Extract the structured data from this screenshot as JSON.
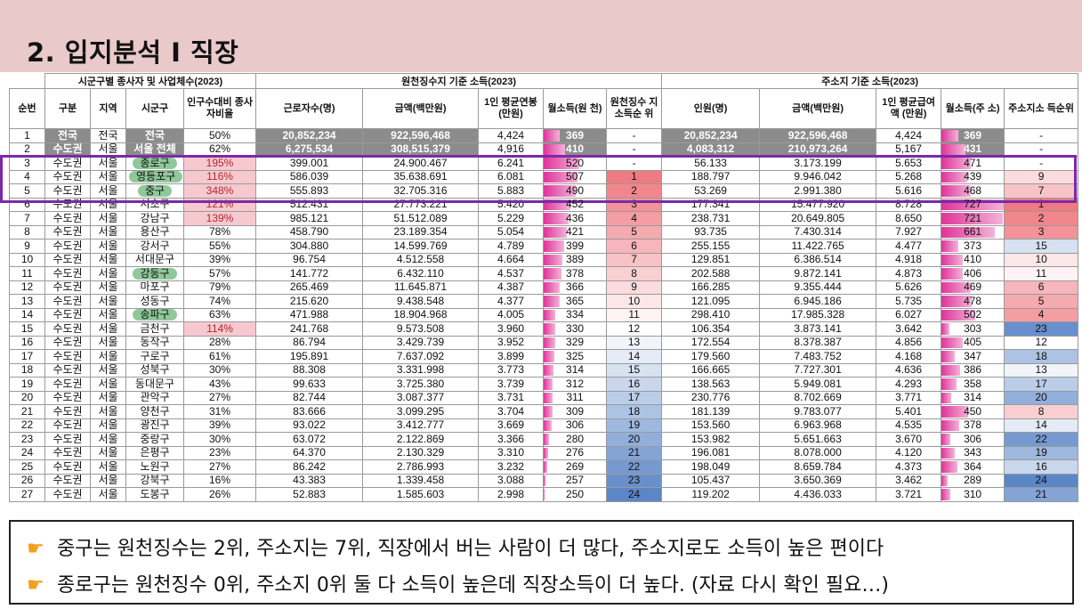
{
  "header": {
    "title": "2. 입지분석 I 직장"
  },
  "table": {
    "group_headers": {
      "left": "시군구별 종사자 및 사업체수(2023)",
      "middle": "원천징수지 기준 소득(2023)",
      "right": "주소지 기준 소득(2023)"
    },
    "columns": {
      "no": "순번",
      "gubun": "구분",
      "region": "지역",
      "sigungu": "시군구",
      "ratio": "인구수대비 종사자비율",
      "workers": "근로자수(명)",
      "amount": "금액(백만원)",
      "avg": "1인 평균연봉 (만원)",
      "monthly": "월소득(원 천)",
      "rank": "원천징수 지소득순 위",
      "people": "인원(명)",
      "amount2": "금액(백만원)",
      "avg2": "1인 평균급여액 (만원)",
      "monthly2": "월소득(주 소)",
      "rank2": "주소지소 득순위"
    },
    "rows": [
      {
        "no": "1",
        "gubun": "전국",
        "region": "전국",
        "sigungu": "전국",
        "ratio": "50%",
        "workers": "20,852,234",
        "amount": "922,596,468",
        "avg": "4,424",
        "monthly": "369",
        "rank": "-",
        "people": "20,852,234",
        "amount2": "922,596,468",
        "avg2": "4,424",
        "monthly2": "369",
        "rank2": "-"
      },
      {
        "no": "2",
        "gubun": "수도권",
        "region": "서울",
        "sigungu": "서울 전체",
        "ratio": "62%",
        "workers": "6,275,534",
        "amount": "308,515,379",
        "avg": "4,916",
        "monthly": "410",
        "rank": "-",
        "people": "4,083,312",
        "amount2": "210,973,264",
        "avg2": "5,167",
        "monthly2": "431",
        "rank2": "-"
      },
      {
        "no": "3",
        "gubun": "수도권",
        "region": "서울",
        "sigungu": "종로구",
        "ratio": "195%",
        "workers": "399.001",
        "amount": "24.900.467",
        "avg": "6.241",
        "monthly": "520",
        "rank": "-",
        "people": "56.133",
        "amount2": "3.173.199",
        "avg2": "5.653",
        "monthly2": "471",
        "rank2": "-"
      },
      {
        "no": "4",
        "gubun": "수도권",
        "region": "서울",
        "sigungu": "영등포구",
        "ratio": "116%",
        "workers": "586.039",
        "amount": "35.638.691",
        "avg": "6.081",
        "monthly": "507",
        "rank": "1",
        "people": "188.797",
        "amount2": "9.946.042",
        "avg2": "5.268",
        "monthly2": "439",
        "rank2": "9"
      },
      {
        "no": "5",
        "gubun": "수도권",
        "region": "서울",
        "sigungu": "중구",
        "ratio": "348%",
        "workers": "555.893",
        "amount": "32.705.316",
        "avg": "5.883",
        "monthly": "490",
        "rank": "2",
        "people": "53.269",
        "amount2": "2.991.380",
        "avg2": "5.616",
        "monthly2": "468",
        "rank2": "7"
      },
      {
        "no": "6",
        "gubun": "수도권",
        "region": "서울",
        "sigungu": "서초구",
        "ratio": "121%",
        "workers": "512.431",
        "amount": "27.773.221",
        "avg": "5.420",
        "monthly": "452",
        "rank": "3",
        "people": "177.341",
        "amount2": "15.477.920",
        "avg2": "8.728",
        "monthly2": "727",
        "rank2": "1"
      },
      {
        "no": "7",
        "gubun": "수도권",
        "region": "서울",
        "sigungu": "강남구",
        "ratio": "139%",
        "workers": "985.121",
        "amount": "51.512.089",
        "avg": "5.229",
        "monthly": "436",
        "rank": "4",
        "people": "238.731",
        "amount2": "20.649.805",
        "avg2": "8.650",
        "monthly2": "721",
        "rank2": "2"
      },
      {
        "no": "8",
        "gubun": "수도권",
        "region": "서울",
        "sigungu": "용산구",
        "ratio": "78%",
        "workers": "458.790",
        "amount": "23.189.354",
        "avg": "5.054",
        "monthly": "421",
        "rank": "5",
        "people": "93.735",
        "amount2": "7.430.314",
        "avg2": "7.927",
        "monthly2": "661",
        "rank2": "3"
      },
      {
        "no": "9",
        "gubun": "수도권",
        "region": "서울",
        "sigungu": "강서구",
        "ratio": "55%",
        "workers": "304.880",
        "amount": "14.599.769",
        "avg": "4.789",
        "monthly": "399",
        "rank": "6",
        "people": "255.155",
        "amount2": "11.422.765",
        "avg2": "4.477",
        "monthly2": "373",
        "rank2": "15"
      },
      {
        "no": "10",
        "gubun": "수도권",
        "region": "서울",
        "sigungu": "서대문구",
        "ratio": "39%",
        "workers": "96.754",
        "amount": "4.512.558",
        "avg": "4.664",
        "monthly": "389",
        "rank": "7",
        "people": "129.851",
        "amount2": "6.386.514",
        "avg2": "4.918",
        "monthly2": "410",
        "rank2": "10"
      },
      {
        "no": "11",
        "gubun": "수도권",
        "region": "서울",
        "sigungu": "강동구",
        "ratio": "57%",
        "workers": "141.772",
        "amount": "6.432.110",
        "avg": "4.537",
        "monthly": "378",
        "rank": "8",
        "people": "202.588",
        "amount2": "9.872.141",
        "avg2": "4.873",
        "monthly2": "406",
        "rank2": "11"
      },
      {
        "no": "12",
        "gubun": "수도권",
        "region": "서울",
        "sigungu": "마포구",
        "ratio": "79%",
        "workers": "265.469",
        "amount": "11.645.871",
        "avg": "4.387",
        "monthly": "366",
        "rank": "9",
        "people": "166.285",
        "amount2": "9.355.444",
        "avg2": "5.626",
        "monthly2": "469",
        "rank2": "6"
      },
      {
        "no": "13",
        "gubun": "수도권",
        "region": "서울",
        "sigungu": "성동구",
        "ratio": "74%",
        "workers": "215.620",
        "amount": "9.438.548",
        "avg": "4.377",
        "monthly": "365",
        "rank": "10",
        "people": "121.095",
        "amount2": "6.945.186",
        "avg2": "5.735",
        "monthly2": "478",
        "rank2": "5"
      },
      {
        "no": "14",
        "gubun": "수도권",
        "region": "서울",
        "sigungu": "송파구",
        "ratio": "63%",
        "workers": "471.988",
        "amount": "18.904.968",
        "avg": "4.005",
        "monthly": "334",
        "rank": "11",
        "people": "298.410",
        "amount2": "17.985.328",
        "avg2": "6.027",
        "monthly2": "502",
        "rank2": "4"
      },
      {
        "no": "15",
        "gubun": "수도권",
        "region": "서울",
        "sigungu": "금천구",
        "ratio": "114%",
        "workers": "241.768",
        "amount": "9.573.508",
        "avg": "3.960",
        "monthly": "330",
        "rank": "12",
        "people": "106.354",
        "amount2": "3.873.141",
        "avg2": "3.642",
        "monthly2": "303",
        "rank2": "23"
      },
      {
        "no": "16",
        "gubun": "수도권",
        "region": "서울",
        "sigungu": "동작구",
        "ratio": "28%",
        "workers": "86.794",
        "amount": "3.429.739",
        "avg": "3.952",
        "monthly": "329",
        "rank": "13",
        "people": "172.554",
        "amount2": "8.378.387",
        "avg2": "4.856",
        "monthly2": "405",
        "rank2": "12"
      },
      {
        "no": "17",
        "gubun": "수도권",
        "region": "서울",
        "sigungu": "구로구",
        "ratio": "61%",
        "workers": "195.891",
        "amount": "7.637.092",
        "avg": "3.899",
        "monthly": "325",
        "rank": "14",
        "people": "179.560",
        "amount2": "7.483.752",
        "avg2": "4.168",
        "monthly2": "347",
        "rank2": "18"
      },
      {
        "no": "18",
        "gubun": "수도권",
        "region": "서울",
        "sigungu": "성북구",
        "ratio": "30%",
        "workers": "88.308",
        "amount": "3.331.998",
        "avg": "3.773",
        "monthly": "314",
        "rank": "15",
        "people": "166.665",
        "amount2": "7.727.301",
        "avg2": "4.636",
        "monthly2": "386",
        "rank2": "13"
      },
      {
        "no": "19",
        "gubun": "수도권",
        "region": "서울",
        "sigungu": "동대문구",
        "ratio": "43%",
        "workers": "99.633",
        "amount": "3.725.380",
        "avg": "3.739",
        "monthly": "312",
        "rank": "16",
        "people": "138.563",
        "amount2": "5.949.081",
        "avg2": "4.293",
        "monthly2": "358",
        "rank2": "17"
      },
      {
        "no": "20",
        "gubun": "수도권",
        "region": "서울",
        "sigungu": "관악구",
        "ratio": "27%",
        "workers": "82.744",
        "amount": "3.087.377",
        "avg": "3.731",
        "monthly": "311",
        "rank": "17",
        "people": "230.776",
        "amount2": "8.702.669",
        "avg2": "3.771",
        "monthly2": "314",
        "rank2": "20"
      },
      {
        "no": "21",
        "gubun": "수도권",
        "region": "서울",
        "sigungu": "양천구",
        "ratio": "31%",
        "workers": "83.666",
        "amount": "3.099.295",
        "avg": "3.704",
        "monthly": "309",
        "rank": "18",
        "people": "181.139",
        "amount2": "9.783.077",
        "avg2": "5.401",
        "monthly2": "450",
        "rank2": "8"
      },
      {
        "no": "22",
        "gubun": "수도권",
        "region": "서울",
        "sigungu": "광진구",
        "ratio": "39%",
        "workers": "93.022",
        "amount": "3.412.777",
        "avg": "3.669",
        "monthly": "306",
        "rank": "19",
        "people": "153.560",
        "amount2": "6.963.968",
        "avg2": "4.535",
        "monthly2": "378",
        "rank2": "14"
      },
      {
        "no": "23",
        "gubun": "수도권",
        "region": "서울",
        "sigungu": "중랑구",
        "ratio": "30%",
        "workers": "63.072",
        "amount": "2.122.869",
        "avg": "3.366",
        "monthly": "280",
        "rank": "20",
        "people": "153.982",
        "amount2": "5.651.663",
        "avg2": "3.670",
        "monthly2": "306",
        "rank2": "22"
      },
      {
        "no": "24",
        "gubun": "수도권",
        "region": "서울",
        "sigungu": "은평구",
        "ratio": "23%",
        "workers": "64.370",
        "amount": "2.130.329",
        "avg": "3.310",
        "monthly": "276",
        "rank": "21",
        "people": "196.081",
        "amount2": "8.078.000",
        "avg2": "4.120",
        "monthly2": "343",
        "rank2": "19"
      },
      {
        "no": "25",
        "gubun": "수도권",
        "region": "서울",
        "sigungu": "노원구",
        "ratio": "27%",
        "workers": "86.242",
        "amount": "2.786.993",
        "avg": "3.232",
        "monthly": "269",
        "rank": "22",
        "people": "198.049",
        "amount2": "8.659.784",
        "avg2": "4.373",
        "monthly2": "364",
        "rank2": "16"
      },
      {
        "no": "26",
        "gubun": "수도권",
        "region": "서울",
        "sigungu": "강북구",
        "ratio": "16%",
        "workers": "43.383",
        "amount": "1.339.458",
        "avg": "3.088",
        "monthly": "257",
        "rank": "23",
        "people": "105.437",
        "amount2": "3.650.369",
        "avg2": "3.462",
        "monthly2": "289",
        "rank2": "24"
      },
      {
        "no": "27",
        "gubun": "수도권",
        "region": "서울",
        "sigungu": "도봉구",
        "ratio": "26%",
        "workers": "52.883",
        "amount": "1.585.603",
        "avg": "2.998",
        "monthly": "250",
        "rank": "24",
        "people": "119.202",
        "amount2": "4.436.033",
        "avg2": "3.721",
        "monthly2": "310",
        "rank2": "21"
      }
    ]
  },
  "notes": [
    "중구는 원천징수는 2위, 주소지는 7위, 직장에서 버는 사람이 더 많다, 주소지로도 소득이 높은 편이다",
    "종로구는 원천징수 0위, 주소지 0위 둘 다 소득이 높은데 직장소득이 더 높다. (자료 다시 확인 필요…)"
  ],
  "colors": {
    "bar_pink": "#e0339a",
    "rank_red": "#f07a82",
    "rank_blue": "#5b86c7",
    "highlight_box": "#7b2aa8",
    "green_blob": "#8fc99a"
  },
  "icons": {
    "note_bullet": "pointing-hand-icon"
  }
}
